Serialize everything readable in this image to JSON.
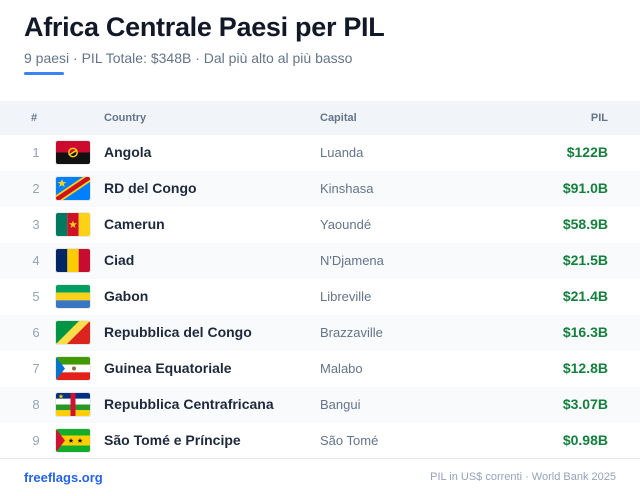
{
  "header": {
    "title": "Africa Centrale Paesi per PIL",
    "subtitle": "9 paesi · PIL Totale: $348B · Dal più alto al più basso"
  },
  "table": {
    "columns": {
      "rank": "#",
      "country": "Country",
      "capital": "Capital",
      "gdp": "PIL"
    },
    "rows": [
      {
        "rank": "1",
        "country": "Angola",
        "capital": "Luanda",
        "gdp": "$122B",
        "flag": "angola-flag-icon"
      },
      {
        "rank": "2",
        "country": "RD del Congo",
        "capital": "Kinshasa",
        "gdp": "$91.0B",
        "flag": "dr-congo-flag-icon"
      },
      {
        "rank": "3",
        "country": "Camerun",
        "capital": "Yaoundé",
        "gdp": "$58.9B",
        "flag": "cameroon-flag-icon"
      },
      {
        "rank": "4",
        "country": "Ciad",
        "capital": "N'Djamena",
        "gdp": "$21.5B",
        "flag": "chad-flag-icon"
      },
      {
        "rank": "5",
        "country": "Gabon",
        "capital": "Libreville",
        "gdp": "$21.4B",
        "flag": "gabon-flag-icon"
      },
      {
        "rank": "6",
        "country": "Repubblica del Congo",
        "capital": "Brazzaville",
        "gdp": "$16.3B",
        "flag": "congo-flag-icon"
      },
      {
        "rank": "7",
        "country": "Guinea Equatoriale",
        "capital": "Malabo",
        "gdp": "$12.8B",
        "flag": "equatorial-guinea-flag-icon"
      },
      {
        "rank": "8",
        "country": "Repubblica Centrafricana",
        "capital": "Bangui",
        "gdp": "$3.07B",
        "flag": "central-african-republic-flag-icon"
      },
      {
        "rank": "9",
        "country": "São Tomé e Príncipe",
        "capital": "São Tomé",
        "gdp": "$0.98B",
        "flag": "sao-tome-flag-icon"
      }
    ]
  },
  "footer": {
    "link": "freeflags.org",
    "note": "PIL in US$ correnti · World Bank 2025"
  },
  "colors": {
    "accent": "#3b82f6",
    "gdp": "#15803d",
    "link": "#2563eb"
  }
}
